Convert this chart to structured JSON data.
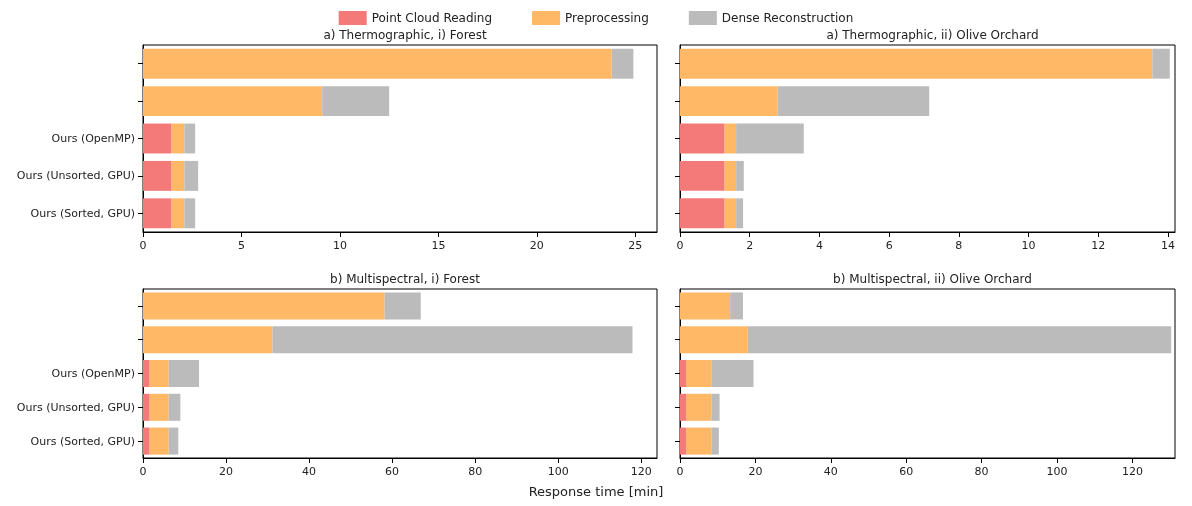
{
  "chart_data": [
    {
      "type": "bar",
      "orientation": "horizontal",
      "stacked": true,
      "title": "a) Thermographic, i) Forest",
      "categories": [
        null,
        null,
        "Ours (OpenMP)",
        "Ours (Unsorted, GPU)",
        "Ours (Sorted, GPU)"
      ],
      "xlim": [
        0,
        26.1
      ],
      "xticks": [
        0,
        5,
        10,
        15,
        20,
        25
      ],
      "legend": "top",
      "grid": false,
      "series": [
        {
          "name": "Point Cloud Reading",
          "color": "#f47a7a",
          "values": [
            0,
            0,
            1.45,
            1.45,
            1.45
          ]
        },
        {
          "name": "Preprocessing",
          "color": "#ffb866",
          "values": [
            23.8,
            9.1,
            0.65,
            0.65,
            0.65
          ]
        },
        {
          "name": "Dense Reconstruction",
          "color": "#bbbbbb",
          "values": [
            1.1,
            3.4,
            0.55,
            0.7,
            0.55
          ]
        }
      ]
    },
    {
      "type": "bar",
      "orientation": "horizontal",
      "stacked": true,
      "title": "a) Thermographic, ii) Olive Orchard",
      "categories": [
        null,
        null,
        null,
        null,
        null
      ],
      "xlim": [
        0,
        14.2
      ],
      "xticks": [
        0,
        2,
        4,
        6,
        8,
        10,
        12,
        14
      ],
      "grid": false,
      "series": [
        {
          "color": "#f47a7a",
          "values": [
            0,
            0,
            1.28,
            1.28,
            1.28
          ]
        },
        {
          "color": "#ffb866",
          "values": [
            13.55,
            2.8,
            0.33,
            0.33,
            0.33
          ]
        },
        {
          "color": "#bbbbbb",
          "values": [
            0.5,
            4.35,
            1.94,
            0.22,
            0.2
          ]
        }
      ]
    },
    {
      "type": "bar",
      "orientation": "horizontal",
      "stacked": true,
      "title": "b) Multispectral, i) Forest",
      "xlabel": "Response time [min]",
      "categories": [
        null,
        null,
        "Ours (OpenMP)",
        "Ours (Unsorted, GPU)",
        "Ours (Sorted, GPU)"
      ],
      "xlim": [
        0,
        123.8
      ],
      "xticks": [
        0,
        20,
        40,
        60,
        80,
        100,
        120
      ],
      "grid": false,
      "series": [
        {
          "color": "#f47a7a",
          "values": [
            0,
            0,
            1.6,
            1.6,
            1.6
          ]
        },
        {
          "color": "#ffb866",
          "values": [
            58.2,
            31.2,
            4.6,
            4.6,
            4.6
          ]
        },
        {
          "color": "#bbbbbb",
          "values": [
            8.7,
            86.7,
            7.3,
            2.8,
            2.3
          ]
        }
      ]
    },
    {
      "type": "bar",
      "orientation": "horizontal",
      "stacked": true,
      "title": "b) Multispectral, ii) Olive Orchard",
      "categories": [
        null,
        null,
        null,
        null,
        null
      ],
      "xlim": [
        0,
        131.3
      ],
      "xticks": [
        0,
        20,
        40,
        60,
        80,
        100,
        120
      ],
      "grid": false,
      "series": [
        {
          "color": "#f47a7a",
          "values": [
            0,
            0,
            1.6,
            1.6,
            1.6
          ]
        },
        {
          "color": "#ffb866",
          "values": [
            13.3,
            18.0,
            6.7,
            6.7,
            6.7
          ]
        },
        {
          "color": "#bbbbbb",
          "values": [
            3.4,
            112.3,
            11.2,
            2.2,
            2.0
          ]
        }
      ]
    }
  ]
}
